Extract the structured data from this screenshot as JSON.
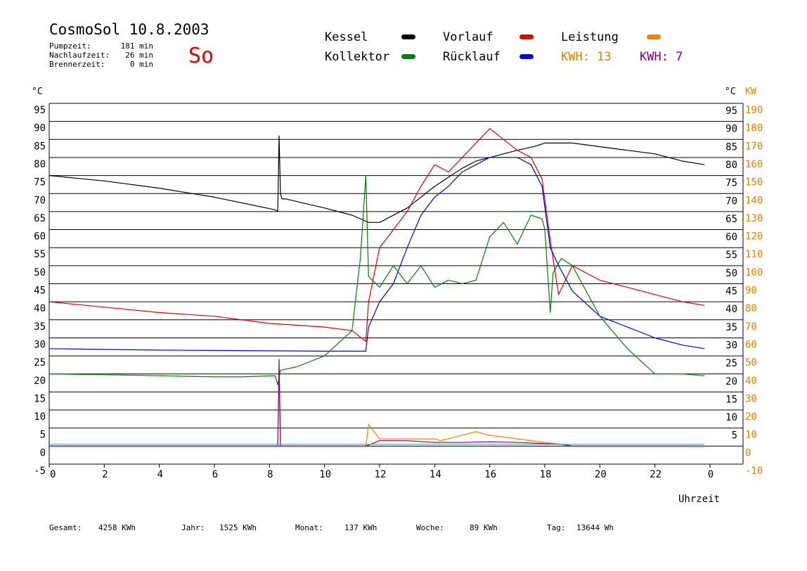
{
  "header": {
    "title": "CosmoSol 10.8.2003",
    "day": "So",
    "stats": [
      {
        "label": "Pumpzeit:",
        "value": "181 min"
      },
      {
        "label": "Nachlaufzeit:",
        "value": "26 min"
      },
      {
        "label": "Brennerzeit:",
        "value": "0 min"
      }
    ]
  },
  "legend": {
    "kessel": {
      "label": "Kessel",
      "color": "#000000"
    },
    "vorlauf": {
      "label": "Vorlauf",
      "color": "#e00000"
    },
    "leistung": {
      "label": "Leistung",
      "color": "#ff8000"
    },
    "kollektor": {
      "label": "Kollektor",
      "color": "#008000"
    },
    "ruecklauf": {
      "label": "Rücklauf",
      "color": "#0000e0"
    },
    "kwh1": "KWH: 13",
    "kwh2": "KWH: 7",
    "kwh1_color": "#e08000",
    "kwh2_color": "#800080"
  },
  "footer": {
    "gesamt_label": "Gesamt:",
    "gesamt_value": "4258 KWh",
    "jahr_label": "Jahr:",
    "jahr_value": "1525 KWh",
    "monat_label": "Monat:",
    "monat_value": "137 KWh",
    "woche_label": "Woche:",
    "woche_value": "89 KWh",
    "tag_label": "Tag:",
    "tag_value": "13644 Wh"
  },
  "chart_data": {
    "type": "line",
    "title": "CosmoSol 10.8.2003",
    "xlabel": "Uhrzeit",
    "ylabel_left": "°C",
    "ylabel_right_c": "°C",
    "ylabel_right_kw": "KW",
    "x_ticks": [
      "0",
      "2",
      "4",
      "6",
      "8",
      "10",
      "12",
      "14",
      "16",
      "18",
      "20",
      "22",
      "0"
    ],
    "y_left_ticks": [
      "95",
      "90",
      "85",
      "80",
      "75",
      "70",
      "65",
      "60",
      "55",
      "50",
      "45",
      "40",
      "35",
      "30",
      "25",
      "20",
      "15",
      "10",
      "5",
      "0",
      "-5"
    ],
    "y_right_ticks": [
      "95",
      "90",
      "85",
      "80",
      "75",
      "70",
      "65",
      "60",
      "55",
      "50",
      "45",
      "40",
      "35",
      "30",
      "25",
      "20",
      "15",
      "10",
      "5"
    ],
    "y_kw_ticks": [
      "190",
      "180",
      "170",
      "160",
      "150",
      "140",
      "130",
      "120",
      "110",
      "100",
      "90",
      "80",
      "70",
      "60",
      "50",
      "40",
      "30",
      "20",
      "10",
      "0",
      "-10"
    ],
    "xlim": [
      0,
      24
    ],
    "ylim": [
      -5,
      95
    ],
    "grid": true,
    "series": [
      {
        "name": "Kessel",
        "color": "#000000",
        "x": [
          0,
          2,
          4,
          6,
          8.2,
          8.3,
          8.35,
          8.4,
          8.45,
          8.6,
          10,
          11,
          11.6,
          12,
          13,
          14,
          15,
          15.5,
          16,
          17,
          17.6,
          18,
          19,
          20,
          21,
          22,
          23,
          23.8
        ],
        "y": [
          75,
          73.5,
          71.5,
          69,
          65.5,
          65,
          86,
          70,
          68.5,
          68.5,
          66,
          64,
          62,
          62,
          66,
          72,
          77,
          79,
          80,
          82,
          83,
          84,
          84,
          83,
          82,
          81,
          79,
          78
        ]
      },
      {
        "name": "Vorlauf",
        "color": "#e00000",
        "x": [
          0,
          2,
          4,
          6,
          8,
          10,
          11,
          11.5,
          11.6,
          12,
          12.5,
          13,
          13.5,
          14,
          14.5,
          15,
          15.5,
          16,
          16.5,
          17,
          17.5,
          17.9,
          18.2,
          18.5,
          19,
          20,
          21,
          22,
          23,
          23.8
        ],
        "y": [
          40,
          38.5,
          37,
          36,
          34,
          33,
          32,
          29,
          40,
          55,
          60,
          65,
          72,
          78,
          76,
          80,
          84,
          88,
          85,
          82,
          80,
          74,
          57,
          42,
          50,
          46,
          44,
          42,
          40,
          39
        ]
      },
      {
        "name": "Rücklauf",
        "color": "#0000e0",
        "x": [
          0,
          2,
          4,
          6,
          8,
          10,
          11,
          11.5,
          11.6,
          12,
          12.5,
          13,
          13.5,
          14,
          14.5,
          15,
          15.5,
          16,
          16.5,
          17,
          17.5,
          17.9,
          18.2,
          18.5,
          19,
          20,
          21,
          22,
          23,
          23.8
        ],
        "y": [
          27,
          26.8,
          26.6,
          26.5,
          26.4,
          26.3,
          26.3,
          26.3,
          33,
          40,
          45,
          55,
          64,
          69,
          72,
          76,
          78,
          80,
          80,
          80,
          78,
          72,
          55,
          50,
          43,
          36,
          33,
          30,
          28,
          27
        ]
      },
      {
        "name": "Kollektor",
        "color": "#008000",
        "x": [
          0,
          2,
          4,
          6,
          7,
          8.2,
          8.3,
          8.4,
          9,
          10,
          11,
          11.3,
          11.5,
          11.6,
          12,
          12.5,
          13,
          13.5,
          14,
          14.5,
          15,
          15.5,
          16,
          16.5,
          17,
          17.5,
          17.9,
          18,
          18.2,
          18.3,
          18.6,
          19,
          20,
          21,
          22,
          23,
          23.8
        ],
        "y": [
          20,
          19.8,
          19.5,
          19.2,
          19.2,
          19.5,
          17,
          21,
          22,
          25,
          32,
          52,
          75,
          47,
          44,
          50,
          45,
          50,
          44,
          46,
          45,
          46,
          58,
          62,
          56,
          64,
          63,
          60,
          37,
          48,
          52,
          50,
          36,
          27,
          20,
          20,
          19.5
        ]
      },
      {
        "name": "Leistung",
        "color": "#ff8000",
        "x": [
          0,
          8.3,
          8.35,
          8.4,
          11.5,
          11.6,
          12,
          12.5,
          13,
          14,
          14.2,
          15.5,
          16,
          17,
          18,
          18.6,
          19,
          23.8
        ],
        "y": [
          0,
          0,
          19,
          0,
          0,
          6,
          2,
          2,
          2,
          2,
          1.5,
          4,
          3,
          2,
          1,
          0.5,
          0,
          0
        ]
      },
      {
        "name": "KWH 7",
        "color": "#800080",
        "x": [
          0,
          8.3,
          8.35,
          8.4,
          11.5,
          12,
          13,
          14,
          15,
          16,
          17,
          18.6,
          19,
          23.8
        ],
        "y": [
          0,
          0,
          24,
          0,
          0,
          1.5,
          1.5,
          1,
          1,
          1.2,
          1,
          0.5,
          0,
          0
        ]
      },
      {
        "name": "",
        "color": "#00c8c8",
        "x": [
          0,
          23.8
        ],
        "y": [
          0.5,
          0.5
        ]
      }
    ]
  }
}
